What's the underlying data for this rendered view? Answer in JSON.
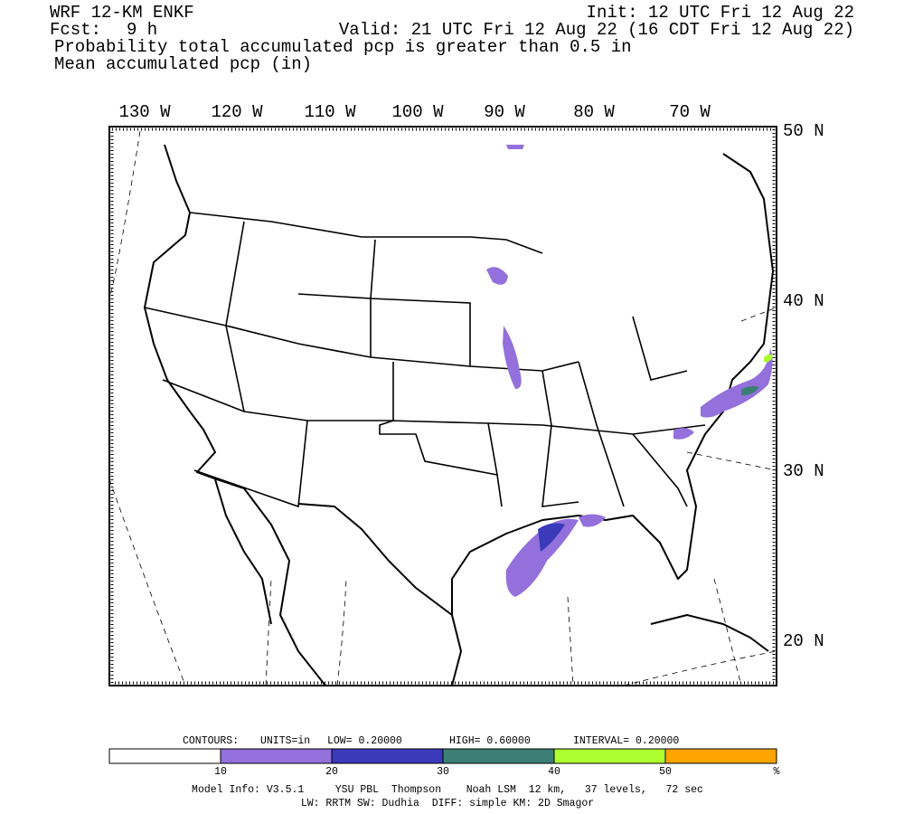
{
  "header": {
    "model": "WRF 12-KM ENKF",
    "init": "Init: 12 UTC Fri 12 Aug 22",
    "fcst_label": "Fcst:",
    "fcst_value": "9 h",
    "valid": "Valid: 21 UTC Fri 12 Aug 22 (16 CDT Fri 12 Aug 22)",
    "line3": "Probability total accumulated pcp is greater than 0.5 in",
    "line4": "Mean accumulated pcp (in)"
  },
  "map": {
    "lon_labels": [
      "130 W",
      "120 W",
      "110 W",
      "100 W",
      "90 W",
      "80 W",
      "70 W"
    ],
    "lat_labels": [
      "50 N",
      "40 N",
      "30 N",
      "20 N"
    ]
  },
  "contours": {
    "label": "CONTOURS:",
    "units": "UNITS=in",
    "low": "LOW= 0.20000",
    "high": "HIGH= 0.60000",
    "interval": "INTERVAL= 0.20000"
  },
  "colorbar": {
    "colors": [
      "#ffffff",
      "#9370db",
      "#3a3aba",
      "#3b7f74",
      "#adff2f",
      "#ffa500"
    ],
    "ticks": [
      10,
      20,
      30,
      40,
      50
    ],
    "unit": "%"
  },
  "footer": {
    "line1": "Model Info: V3.5.1     YSU PBL  Thompson    Noah LSM  12 km,   37 levels,   72 sec",
    "line2": "LW: RRTM SW: Dudhia  DIFF: simple KM: 2D Smagor"
  }
}
